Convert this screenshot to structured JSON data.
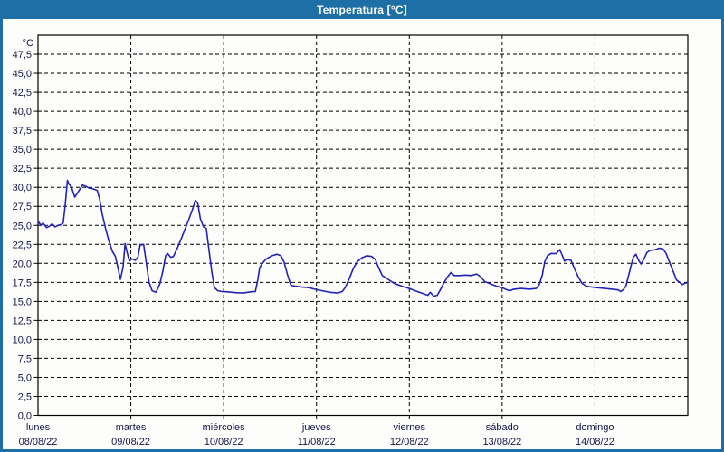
{
  "window": {
    "title": "Temperatura [°C]"
  },
  "colors": {
    "titlebar_bg": "#1E6FA5",
    "frame_border": "#1E6FA5",
    "plot_background": "#FDFDFB",
    "plot_border": "#000000",
    "gridline": "#000000",
    "series_line": "#2222B8",
    "label_text": "#14144A",
    "title_text": "#FFFFFF"
  },
  "chart_data": {
    "type": "line",
    "title": "Temperatura [°C]",
    "ylabel_unit": "°C",
    "ylim": [
      0,
      50
    ],
    "ytick_step": 2.5,
    "ytick_values": [
      0,
      2.5,
      5,
      7.5,
      10,
      12.5,
      15,
      17.5,
      20,
      22.5,
      25,
      27.5,
      30,
      32.5,
      35,
      37.5,
      40,
      42.5,
      45,
      47.5
    ],
    "ytick_labels": [
      "0,0",
      "2,5",
      "5,0",
      "7,5",
      "10,0",
      "12,5",
      "15,0",
      "17,5",
      "20,0",
      "22,5",
      "25,0",
      "27,5",
      "30,0",
      "32,5",
      "35,0",
      "37,5",
      "40,0",
      "42,5",
      "45,0",
      "47,5"
    ],
    "x_total_hours": 168,
    "grid": "dashed",
    "legend": "none",
    "days": [
      {
        "day": "lunes",
        "date": "08/08/22"
      },
      {
        "day": "martes",
        "date": "09/08/22"
      },
      {
        "day": "miércoles",
        "date": "10/08/22"
      },
      {
        "day": "jueves",
        "date": "11/08/22"
      },
      {
        "day": "viernes",
        "date": "12/08/22"
      },
      {
        "day": "sábado",
        "date": "13/08/22"
      },
      {
        "day": "domingo",
        "date": "14/08/22"
      }
    ],
    "series": [
      {
        "name": "Temperatura",
        "units": "°C",
        "points": [
          [
            0,
            25.6
          ],
          [
            0.7,
            25.0
          ],
          [
            1.3,
            25.3
          ],
          [
            2.2,
            24.7
          ],
          [
            3.0,
            24.9
          ],
          [
            3.6,
            25.2
          ],
          [
            4.4,
            24.8
          ],
          [
            5.2,
            25.0
          ],
          [
            6.0,
            25.1
          ],
          [
            6.5,
            25.3
          ],
          [
            7.0,
            27.5
          ],
          [
            7.6,
            30.9
          ],
          [
            8.0,
            30.4
          ],
          [
            8.6,
            30.1
          ],
          [
            9.5,
            28.7
          ],
          [
            10.5,
            29.5
          ],
          [
            11.5,
            30.3
          ],
          [
            12.5,
            30.1
          ],
          [
            13.2,
            29.9
          ],
          [
            14.2,
            29.8
          ],
          [
            15.3,
            29.6
          ],
          [
            15.9,
            28.5
          ],
          [
            16.6,
            26.5
          ],
          [
            17.5,
            24.5
          ],
          [
            18.3,
            23.0
          ],
          [
            19.2,
            21.6
          ],
          [
            20.0,
            20.9
          ],
          [
            20.6,
            19.6
          ],
          [
            21.3,
            17.9
          ],
          [
            22.0,
            19.5
          ],
          [
            22.5,
            22.6
          ],
          [
            23.0,
            21.5
          ],
          [
            23.6,
            20.3
          ],
          [
            24.3,
            20.6
          ],
          [
            25.1,
            20.4
          ],
          [
            25.8,
            20.8
          ],
          [
            26.4,
            22.4
          ],
          [
            27.3,
            22.5
          ],
          [
            28.0,
            20.0
          ],
          [
            28.7,
            17.5
          ],
          [
            29.5,
            16.4
          ],
          [
            30.5,
            16.2
          ],
          [
            31.5,
            17.3
          ],
          [
            32.3,
            19.0
          ],
          [
            33.0,
            21.0
          ],
          [
            33.5,
            21.3
          ],
          [
            34.3,
            20.8
          ],
          [
            35.0,
            20.9
          ],
          [
            36.0,
            22.0
          ],
          [
            37.0,
            23.2
          ],
          [
            38.0,
            24.5
          ],
          [
            39.0,
            25.8
          ],
          [
            40.0,
            27.2
          ],
          [
            40.7,
            28.3
          ],
          [
            41.3,
            27.9
          ],
          [
            42.0,
            25.8
          ],
          [
            42.8,
            24.8
          ],
          [
            43.5,
            24.6
          ],
          [
            44.3,
            21.4
          ],
          [
            44.9,
            19.0
          ],
          [
            45.6,
            16.8
          ],
          [
            46.5,
            16.4
          ],
          [
            47.5,
            16.3
          ],
          [
            49.0,
            16.25
          ],
          [
            51.0,
            16.15
          ],
          [
            53.0,
            16.1
          ],
          [
            55.0,
            16.25
          ],
          [
            56.2,
            16.3
          ],
          [
            56.8,
            17.8
          ],
          [
            57.3,
            19.4
          ],
          [
            58.0,
            20.0
          ],
          [
            59.0,
            20.6
          ],
          [
            60.5,
            21.0
          ],
          [
            61.8,
            21.2
          ],
          [
            62.8,
            21.0
          ],
          [
            63.6,
            20.2
          ],
          [
            64.5,
            18.5
          ],
          [
            65.4,
            17.1
          ],
          [
            66.5,
            17.0
          ],
          [
            68.0,
            16.9
          ],
          [
            70.0,
            16.8
          ],
          [
            71.5,
            16.6
          ],
          [
            73.5,
            16.4
          ],
          [
            75.5,
            16.2
          ],
          [
            77.5,
            16.1
          ],
          [
            78.7,
            16.3
          ],
          [
            79.5,
            16.9
          ],
          [
            80.5,
            18.0
          ],
          [
            81.5,
            19.3
          ],
          [
            82.5,
            20.2
          ],
          [
            83.7,
            20.7
          ],
          [
            85.0,
            21.0
          ],
          [
            86.3,
            20.9
          ],
          [
            87.2,
            20.5
          ],
          [
            88.0,
            19.5
          ],
          [
            89.0,
            18.4
          ],
          [
            90.5,
            17.9
          ],
          [
            92.0,
            17.4
          ],
          [
            94.0,
            17.0
          ],
          [
            96.0,
            16.7
          ],
          [
            98.0,
            16.3
          ],
          [
            100.0,
            15.95
          ],
          [
            100.8,
            15.8
          ],
          [
            101.4,
            16.2
          ],
          [
            102.3,
            15.7
          ],
          [
            103.2,
            15.8
          ],
          [
            104.0,
            16.5
          ],
          [
            105.0,
            17.5
          ],
          [
            106.0,
            18.3
          ],
          [
            106.8,
            18.8
          ],
          [
            107.6,
            18.4
          ],
          [
            109.0,
            18.4
          ],
          [
            110.5,
            18.45
          ],
          [
            112.0,
            18.4
          ],
          [
            113.4,
            18.6
          ],
          [
            114.5,
            18.2
          ],
          [
            115.5,
            17.6
          ],
          [
            117.0,
            17.3
          ],
          [
            118.5,
            17.0
          ],
          [
            120.0,
            16.8
          ],
          [
            121.3,
            16.5
          ],
          [
            122.0,
            16.4
          ],
          [
            123.0,
            16.6
          ],
          [
            125.0,
            16.7
          ],
          [
            127.0,
            16.6
          ],
          [
            128.8,
            16.7
          ],
          [
            129.6,
            17.2
          ],
          [
            130.4,
            18.5
          ],
          [
            131.0,
            20.2
          ],
          [
            131.7,
            21.0
          ],
          [
            132.6,
            21.3
          ],
          [
            134.0,
            21.3
          ],
          [
            134.9,
            21.8
          ],
          [
            135.6,
            21.0
          ],
          [
            136.1,
            20.3
          ],
          [
            136.8,
            20.5
          ],
          [
            137.8,
            20.4
          ],
          [
            138.6,
            19.4
          ],
          [
            139.6,
            18.3
          ],
          [
            140.6,
            17.4
          ],
          [
            141.7,
            17.0
          ],
          [
            143.0,
            16.9
          ],
          [
            144.5,
            16.8
          ],
          [
            146.5,
            16.7
          ],
          [
            148.5,
            16.6
          ],
          [
            150.0,
            16.5
          ],
          [
            150.6,
            16.3
          ],
          [
            151.3,
            16.5
          ],
          [
            152.0,
            17.0
          ],
          [
            153.0,
            19.0
          ],
          [
            153.9,
            20.8
          ],
          [
            154.6,
            21.2
          ],
          [
            155.4,
            20.3
          ],
          [
            155.9,
            19.9
          ],
          [
            156.6,
            20.5
          ],
          [
            157.4,
            21.4
          ],
          [
            158.2,
            21.7
          ],
          [
            159.6,
            21.8
          ],
          [
            160.6,
            22.0
          ],
          [
            161.6,
            21.9
          ],
          [
            162.4,
            21.3
          ],
          [
            163.4,
            20.0
          ],
          [
            164.4,
            18.7
          ],
          [
            165.1,
            17.8
          ],
          [
            165.9,
            17.5
          ],
          [
            166.6,
            17.2
          ],
          [
            167.3,
            17.4
          ],
          [
            168.0,
            17.5
          ]
        ]
      }
    ]
  }
}
